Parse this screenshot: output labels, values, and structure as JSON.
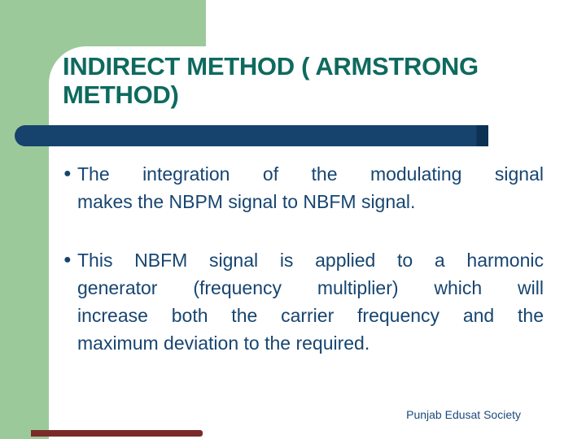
{
  "slide": {
    "title_lines": [
      "INDIRECT METHOD ( ARMSTRONG",
      "METHOD)"
    ],
    "bullets": [
      {
        "lines": [
          "The integration of the modulating signal",
          "makes the NBPM signal to NBFM signal."
        ]
      },
      {
        "lines": [
          "This NBFM signal is applied to a harmonic",
          "generator (frequency multiplier) which will",
          "increase both the carrier frequency and the",
          "maximum deviation to the required."
        ]
      }
    ],
    "footer": "Punjab Edusat Society",
    "icons": {
      "bullet_glyph": "●"
    },
    "colors": {
      "sidebar_green": "#9cc99a",
      "title_teal": "#0e6a5e",
      "accent_navy": "#16436e",
      "accent_navy_dark_cap": "#0d3153",
      "body_text_navy": "#174571",
      "bottom_bar_maroon": "#7b2a2a"
    }
  }
}
